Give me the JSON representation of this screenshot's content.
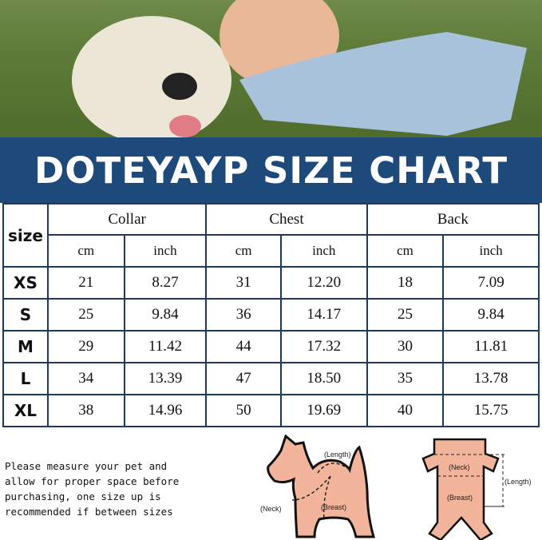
{
  "title": "DOTEYAYP SIZE CHART",
  "table": {
    "size_header": "size",
    "groups": [
      "Collar",
      "Chest",
      "Back"
    ],
    "units": [
      "cm",
      "inch",
      "cm",
      "inch",
      "cm",
      "inch"
    ],
    "rows": [
      {
        "size": "XS",
        "values": [
          "21",
          "8.27",
          "31",
          "12.20",
          "18",
          "7.09"
        ]
      },
      {
        "size": "S",
        "values": [
          "25",
          "9.84",
          "36",
          "14.17",
          "25",
          "9.84"
        ]
      },
      {
        "size": "M",
        "values": [
          "29",
          "11.42",
          "44",
          "17.32",
          "30",
          "11.81"
        ]
      },
      {
        "size": "L",
        "values": [
          "34",
          "13.39",
          "47",
          "18.50",
          "35",
          "13.78"
        ]
      },
      {
        "size": "XL",
        "values": [
          "38",
          "14.96",
          "50",
          "19.69",
          "40",
          "15.75"
        ]
      }
    ]
  },
  "note": [
    "Please measure your pet and",
    "allow for proper space before",
    "purchasing, one size up is",
    "recommended if between sizes"
  ],
  "diagram_side": {
    "length": "(Length)",
    "neck": "(Neck)",
    "breast": "(Breast)"
  },
  "diagram_top": {
    "neck": "(Neck)",
    "breast": "(Breast)",
    "length": "(Length)"
  },
  "colors": {
    "banner": "#1d4a7a",
    "border": "#1d3a5e",
    "diagram_fill": "#f2b49a"
  }
}
